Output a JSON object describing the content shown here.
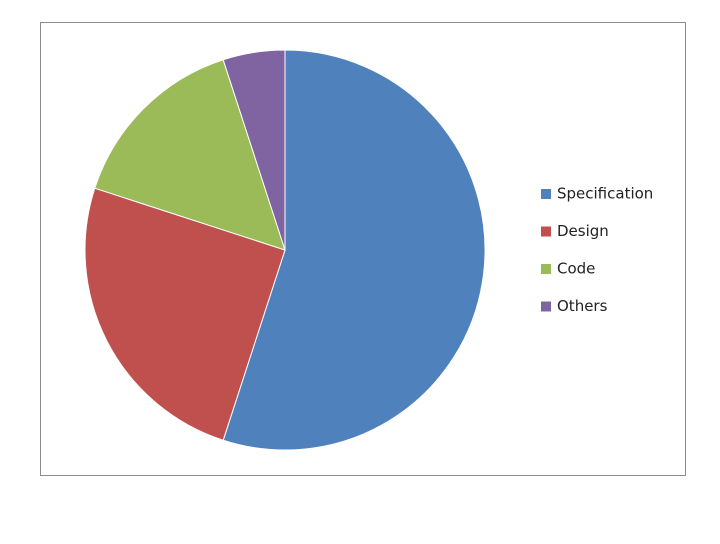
{
  "chart_data": {
    "type": "pie",
    "categories": [
      "Specification",
      "Design",
      "Code",
      "Others"
    ],
    "values": [
      55,
      25,
      15,
      5
    ],
    "colors": [
      "#4f81bd",
      "#c0504d",
      "#9bbb59",
      "#8064a2"
    ],
    "legend": "right"
  }
}
